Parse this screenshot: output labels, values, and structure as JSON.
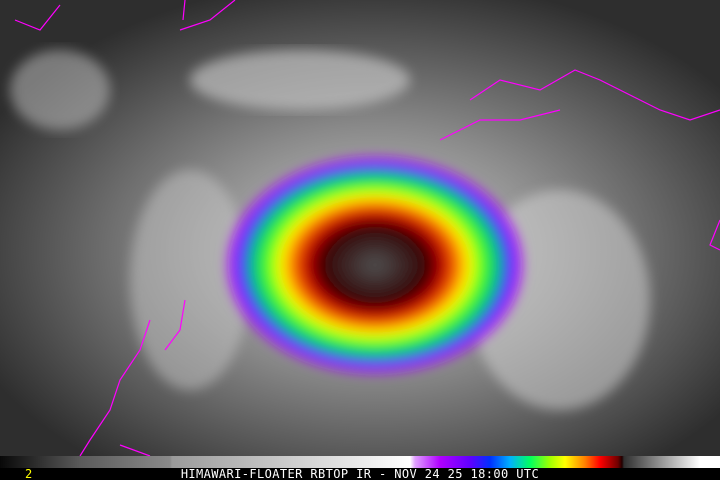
{
  "frame_number": "2",
  "caption": "HIMAWARI-FLOATER RBTOP IR - NOV 24 25 18:00 UTC",
  "colors": {
    "coastline": "#ff00ff",
    "caption_text": "#ffffff",
    "frame_number": "#ffff00"
  }
}
